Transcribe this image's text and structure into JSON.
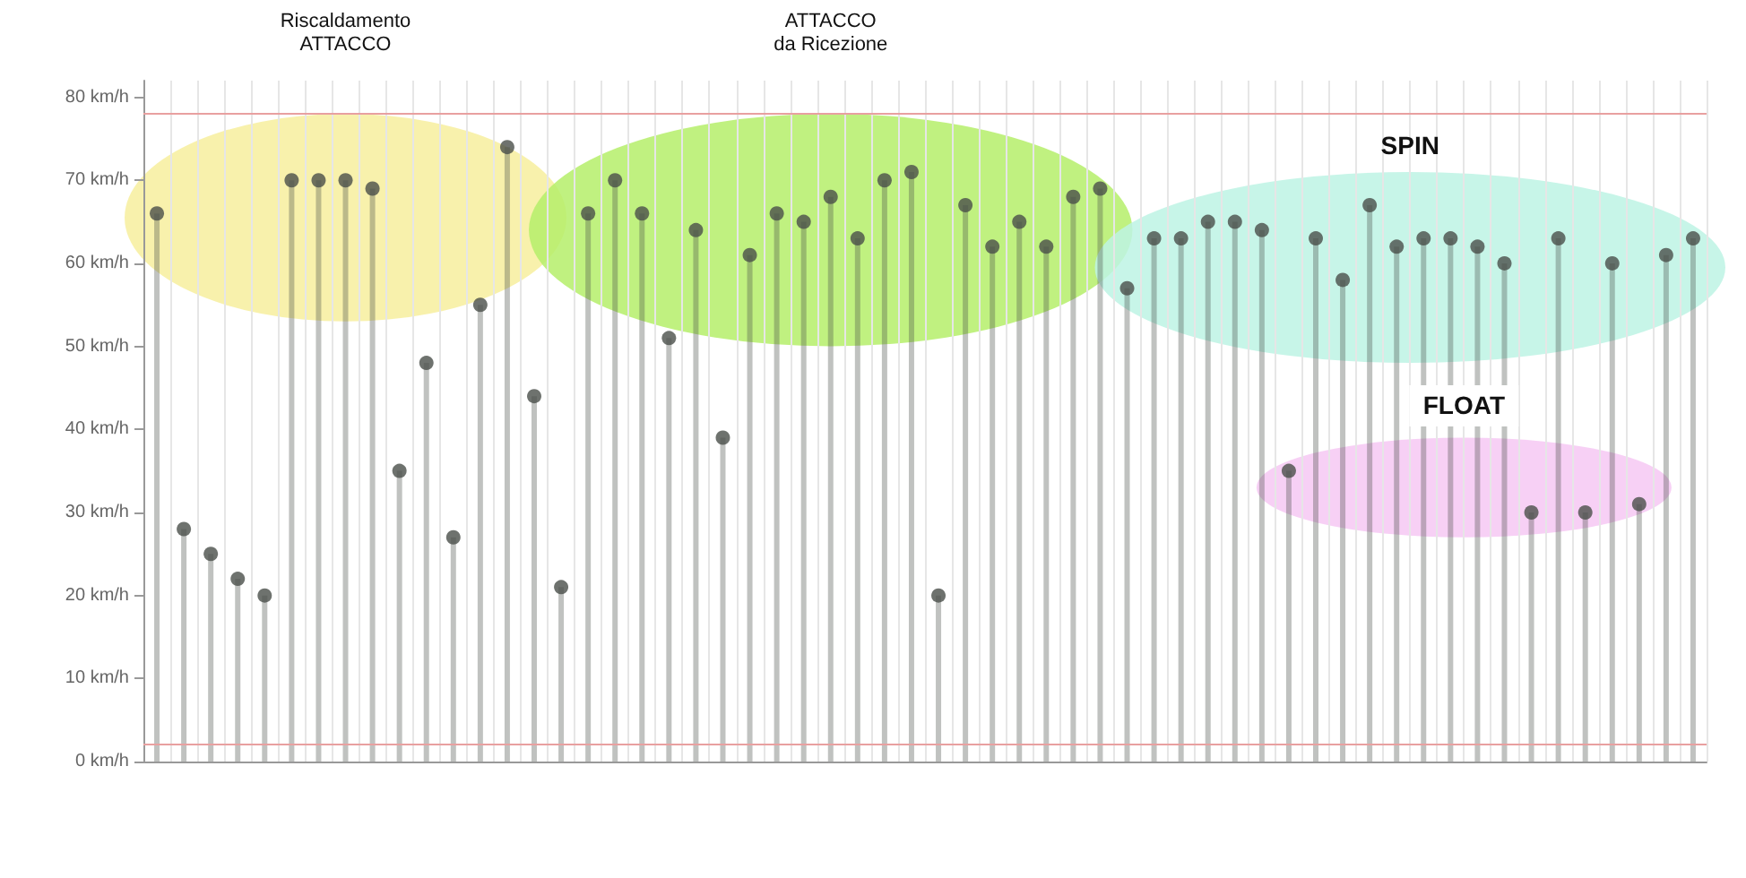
{
  "chart_data": {
    "type": "lollipop",
    "categories": [
      null,
      null,
      null,
      null,
      null,
      null,
      null,
      null,
      null,
      null,
      null,
      null,
      null,
      null,
      null,
      null,
      null,
      null,
      null,
      null,
      null,
      null,
      null,
      null,
      null,
      null,
      null,
      null,
      null,
      null,
      null,
      null,
      null,
      null,
      null,
      null,
      null,
      null,
      null,
      null,
      null,
      null,
      null,
      null,
      null,
      null,
      null,
      null,
      null,
      null,
      null,
      null,
      null,
      null,
      null,
      null,
      null,
      null
    ],
    "values": [
      66,
      28,
      25,
      22,
      20,
      70,
      70,
      70,
      69,
      35,
      48,
      27,
      55,
      74,
      44,
      21,
      66,
      70,
      66,
      51,
      64,
      39,
      61,
      66,
      65,
      68,
      63,
      70,
      71,
      20,
      67,
      62,
      65,
      62,
      68,
      69,
      57,
      63,
      63,
      65,
      65,
      64,
      35,
      63,
      58,
      67,
      62,
      63,
      63,
      62,
      60,
      30,
      63,
      30,
      60,
      31,
      61,
      63
    ],
    "color": "#4a4f4a",
    "ylim": [
      0,
      82
    ],
    "yticks": [
      {
        "value": 0,
        "label": "0 km/h"
      },
      {
        "value": 10,
        "label": "10 km/h"
      },
      {
        "value": 20,
        "label": "20 km/h"
      },
      {
        "value": 30,
        "label": "30 km/h"
      },
      {
        "value": 40,
        "label": "40 km/h"
      },
      {
        "value": 50,
        "label": "50 km/h"
      },
      {
        "value": 60,
        "label": "60 km/h"
      },
      {
        "value": 70,
        "label": "70 km/h"
      },
      {
        "value": 80,
        "label": "80 km/h"
      }
    ],
    "tick_labels": "y",
    "grid": "x",
    "marker": "circle",
    "ref_lines": [
      {
        "axis": "y",
        "value": 78,
        "color": "#e8a0a0"
      },
      {
        "axis": "y",
        "value": 2,
        "color": "#e8a0a0"
      }
    ],
    "annotations": [
      "Riscaldamento\nATTACCO",
      "ATTACCO\nda Ricezione",
      "SPIN",
      "FLOAT"
    ]
  }
}
